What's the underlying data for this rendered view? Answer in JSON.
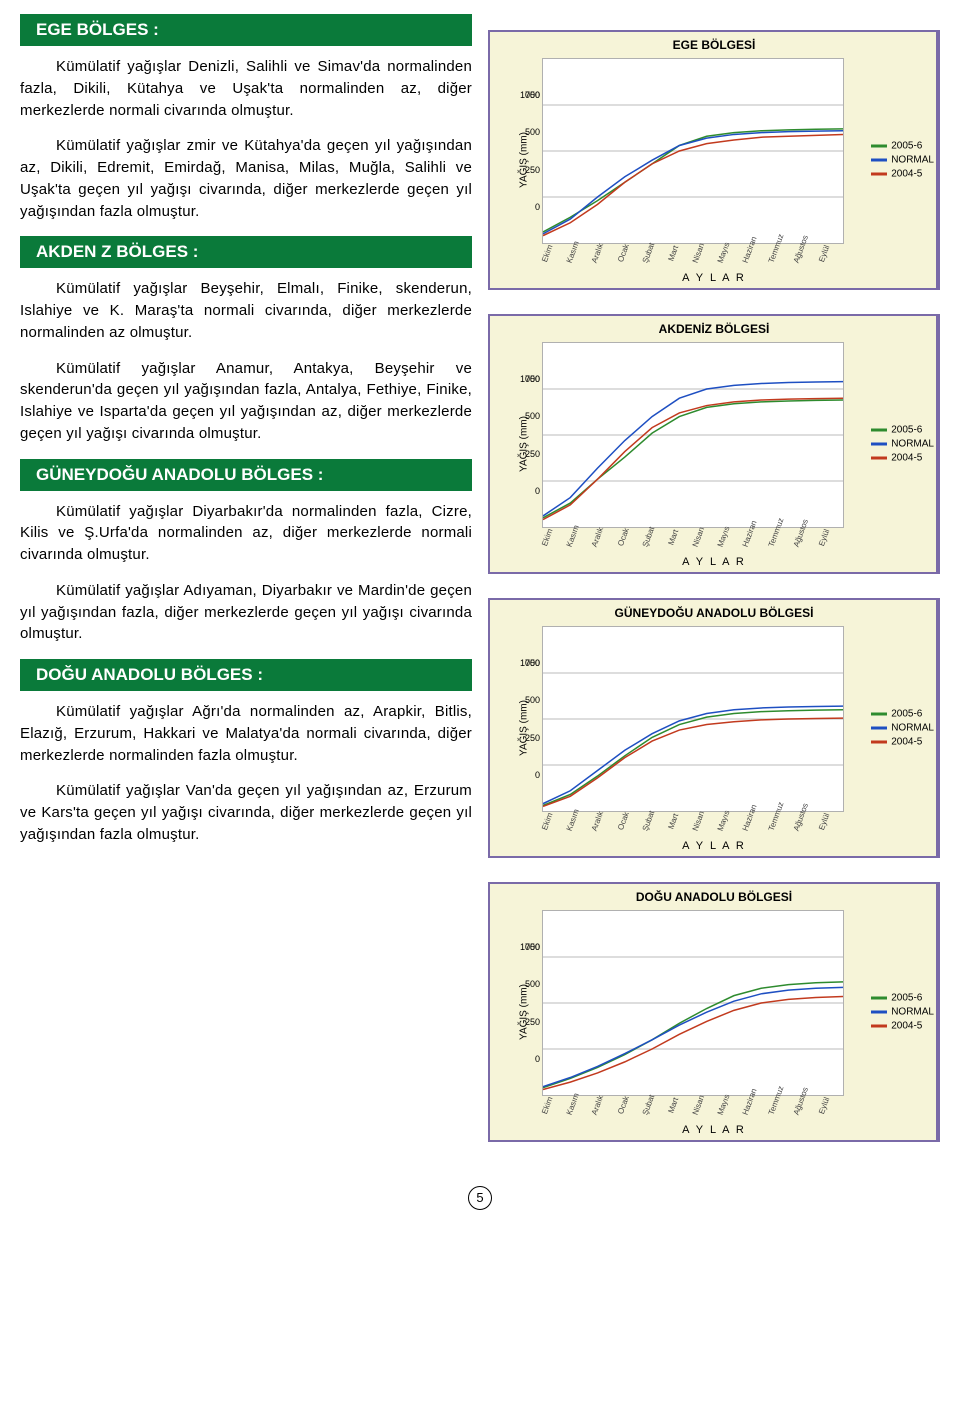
{
  "sections": [
    {
      "title": "EGE BÖLGES :",
      "paras": [
        "Kümülatif yağışlar Denizli, Salihli ve Simav'da normalinden fazla, Dikili, Kütahya ve Uşak'ta normalinden az, diğer merkezlerde normali civarında olmuştur.",
        "Kümülatif yağışlar zmir ve Kütahya'da geçen yıl yağışından az, Dikili, Edremit, Emirdağ, Manisa, Milas, Muğla, Salihli ve Uşak'ta geçen yıl yağışı civarında, diğer merkezlerde geçen yıl yağışından fazla olmuştur."
      ]
    },
    {
      "title": "AKDEN Z BÖLGES :",
      "paras": [
        "Kümülatif yağışlar Beyşehir, Elmalı, Finike, skenderun, Islahiye ve K. Maraş'ta normali civarında, diğer merkezlerde normalinden az olmuştur.",
        "Kümülatif yağışlar Anamur, Antakya, Beyşehir ve skenderun'da geçen yıl yağışından fazla, Antalya, Fethiye, Finike, Islahiye ve Isparta'da geçen yıl yağışından az, diğer merkezlerde geçen yıl yağışı civarında olmuştur."
      ]
    },
    {
      "title": "GÜNEYDOĞU ANADOLU BÖLGES :",
      "paras": [
        "Kümülatif yağışlar Diyarbakır'da normalinden fazla, Cizre, Kilis ve Ş.Urfa'da normalinden az, diğer merkezlerde normali civarında olmuştur.",
        "Kümülatif yağışlar Adıyaman, Diyarbakır ve Mardin'de geçen yıl yağışından fazla, diğer merkezlerde geçen yıl yağışı civarında olmuştur."
      ]
    },
    {
      "title": "DOĞU ANADOLU BÖLGES :",
      "paras": [
        "Kümülatif yağışlar Ağrı'da normalinden az, Arapkir, Bitlis, Elazığ, Erzurum, Hakkari ve Malatya'da normali civarında, diğer merkezlerde normalinden fazla olmuştur.",
        "Kümülatif yağışlar Van'da geçen yıl yağışından az, Erzurum ve Kars'ta geçen yıl yağışı civarında, diğer merkezlerde geçen yıl yağışından fazla olmuştur."
      ]
    }
  ],
  "charts": [
    {
      "title": "EGE  BÖLGESİ",
      "ymax": 1000,
      "ystep": 250,
      "ylabel": "YAĞIŞ (mm)",
      "xlabel": "A Y L A R",
      "months": [
        "Ekim",
        "Kasım",
        "Aralık",
        "Ocak",
        "Şubat",
        "Mart",
        "Nisan",
        "Mayıs",
        "Haziran",
        "Temmuz",
        "Ağustos",
        "Eylül"
      ],
      "series": [
        {
          "name": "2005-6",
          "color": "#2e8b2e",
          "values": [
            60,
            140,
            230,
            330,
            430,
            530,
            580,
            600,
            610,
            615,
            618,
            620
          ]
        },
        {
          "name": "NORMAL",
          "color": "#1e4fc2",
          "values": [
            50,
            130,
            250,
            360,
            450,
            530,
            570,
            590,
            600,
            605,
            608,
            610
          ]
        },
        {
          "name": "2004-5",
          "color": "#c23a1e",
          "values": [
            40,
            110,
            210,
            330,
            430,
            500,
            540,
            560,
            575,
            580,
            585,
            590
          ]
        }
      ]
    },
    {
      "title": "AKDENİZ  BÖLGESİ",
      "ymax": 1000,
      "ystep": 250,
      "ylabel": "YAĞIŞ (mm)",
      "xlabel": "A Y L A R",
      "months": [
        "Ekim",
        "Kasım",
        "Aralık",
        "Ocak",
        "Şubat",
        "Mart",
        "Nisan",
        "Mayıs",
        "Haziran",
        "Temmuz",
        "Ağustos",
        "Eylül"
      ],
      "series": [
        {
          "name": "2005-6",
          "color": "#2e8b2e",
          "values": [
            50,
            130,
            260,
            380,
            510,
            600,
            650,
            670,
            680,
            685,
            688,
            690
          ]
        },
        {
          "name": "NORMAL",
          "color": "#1e4fc2",
          "values": [
            60,
            160,
            320,
            470,
            600,
            700,
            750,
            770,
            780,
            785,
            788,
            790
          ]
        },
        {
          "name": "2004-5",
          "color": "#c23a1e",
          "values": [
            40,
            120,
            260,
            410,
            540,
            620,
            660,
            680,
            690,
            695,
            698,
            700
          ]
        }
      ]
    },
    {
      "title": "GÜNEYDOĞU  ANADOLU  BÖLGESİ",
      "ymax": 1000,
      "ystep": 250,
      "ylabel": "YAĞIŞ (mm)",
      "xlabel": "A Y L A R",
      "months": [
        "Ekim",
        "Kasım",
        "Aralık",
        "Ocak",
        "Şubat",
        "Mart",
        "Nisan",
        "Mayıs",
        "Haziran",
        "Temmuz",
        "Ağustos",
        "Eylül"
      ],
      "series": [
        {
          "name": "2005-6",
          "color": "#2e8b2e",
          "values": [
            30,
            90,
            190,
            300,
            400,
            470,
            510,
            530,
            540,
            545,
            548,
            550
          ]
        },
        {
          "name": "NORMAL",
          "color": "#1e4fc2",
          "values": [
            40,
            110,
            220,
            330,
            420,
            490,
            530,
            550,
            560,
            565,
            568,
            570
          ]
        },
        {
          "name": "2004-5",
          "color": "#c23a1e",
          "values": [
            25,
            80,
            180,
            290,
            380,
            440,
            470,
            485,
            495,
            500,
            503,
            505
          ]
        }
      ]
    },
    {
      "title": "DOĞU ANADOLU  BÖLGESİ",
      "ymax": 1000,
      "ystep": 250,
      "ylabel": "YAĞIŞ (mm)",
      "xlabel": "A Y L A R",
      "months": [
        "Ekim",
        "Kasım",
        "Aralık",
        "Ocak",
        "Şubat",
        "Mart",
        "Nisan",
        "Mayıs",
        "Haziran",
        "Temmuz",
        "Ağustos",
        "Eylül"
      ],
      "series": [
        {
          "name": "2005-6",
          "color": "#2e8b2e",
          "values": [
            40,
            90,
            150,
            220,
            300,
            390,
            470,
            540,
            580,
            600,
            610,
            615
          ]
        },
        {
          "name": "NORMAL",
          "color": "#1e4fc2",
          "values": [
            45,
            95,
            155,
            225,
            300,
            380,
            450,
            510,
            550,
            570,
            580,
            585
          ]
        },
        {
          "name": "2004-5",
          "color": "#c23a1e",
          "values": [
            30,
            70,
            120,
            180,
            250,
            330,
            400,
            460,
            500,
            520,
            530,
            535
          ]
        }
      ]
    }
  ],
  "page_number": "5",
  "bar_bg": "#0a7a3a",
  "chart_border": "#7a6aa8",
  "chart_bg": "#f6f4d8",
  "plot_bg": "#ffffff"
}
